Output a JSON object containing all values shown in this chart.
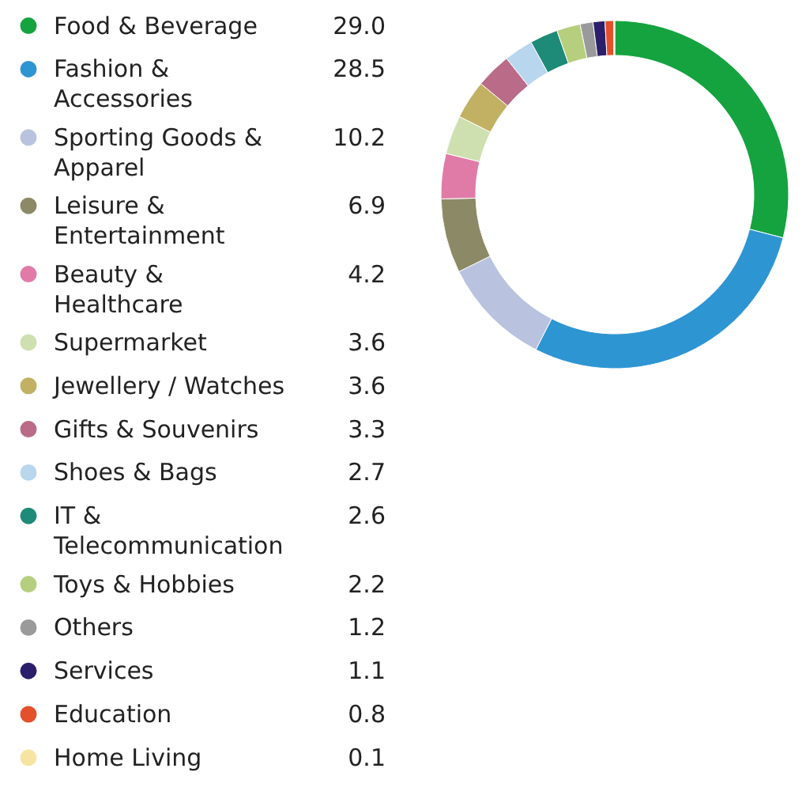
{
  "chart_data": {
    "type": "donut",
    "legend": "left",
    "value_labels": [
      "29.0",
      "28.5",
      "10.2",
      "6.9",
      "4.2",
      "3.6",
      "3.6",
      "3.3",
      "2.7",
      "2.6",
      "2.2",
      "1.2",
      "1.1",
      "0.8",
      "0.1"
    ],
    "categories": [
      "Food & Beverage",
      "Fashion & Accessories",
      "Sporting Goods & Apparel",
      "Leisure & Entertainment",
      "Beauty & Healthcare",
      "Supermarket",
      "Jewellery / Watches",
      "Gifts & Souvenirs",
      "Shoes & Bags",
      "IT & Telecommunication",
      "Toys & Hobbies",
      "Others",
      "Services",
      "Education",
      "Home Living"
    ],
    "values": [
      29.0,
      28.5,
      10.2,
      6.9,
      4.2,
      3.6,
      3.6,
      3.3,
      2.7,
      2.6,
      2.2,
      1.2,
      1.1,
      0.8,
      0.1
    ],
    "colors": [
      "#14a33f",
      "#2e95d3",
      "#b9c3e0",
      "#8c8a66",
      "#e07ba8",
      "#cfe0b0",
      "#c2b163",
      "#b96b88",
      "#b9d6ef",
      "#1e8a78",
      "#b6cf7e",
      "#9a9a9a",
      "#2b1f6b",
      "#e4502a",
      "#f7e4a3"
    ]
  }
}
